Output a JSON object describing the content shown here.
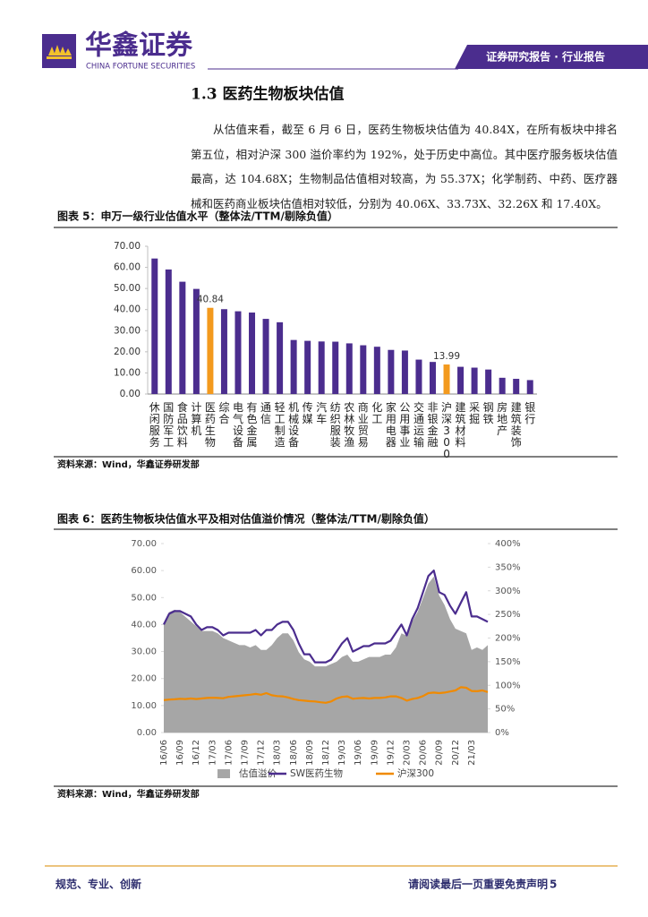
{
  "header": {
    "company": "华鑫证券",
    "company_en": "CHINA FORTUNE SECURITIES",
    "report_type": "证券研究报告 · 行业报告"
  },
  "section": {
    "heading": "1.3 医药生物板块估值",
    "paragraph": "从估值来看，截至 6 月 6 日，医药生物板块估值为 40.84X，在所有板块中排名第五位，相对沪深 300 溢价率约为 192%，处于历史中高位。其中医疗服务板块估值最高，达 104.68X；生物制品估值相对较高，为 55.37X；化学制药、中药、医疗器械和医药商业板块估值相对较低，分别为 40.06X、33.73X、32.26X 和 17.40X。"
  },
  "chart_data": [
    {
      "type": "bar",
      "title": "图表 5：申万一级行业估值水平（整体法/TTM/剔除负值）",
      "categories": [
        "休闲服务",
        "国防军工",
        "食品饮料",
        "计算机",
        "医药生物",
        "综合",
        "电气设备",
        "有色金属",
        "通信",
        "轻工制造",
        "机械设备",
        "传媒",
        "汽车",
        "纺织服装",
        "农林牧渔",
        "商业贸易",
        "化工",
        "家用电器",
        "公用事业",
        "交通运输",
        "非银金融",
        "沪深300",
        "建筑材料",
        "采掘",
        "钢铁",
        "房地产",
        "建筑装饰",
        "银行"
      ],
      "values": [
        64.2,
        59.0,
        53.2,
        49.8,
        40.84,
        40.2,
        39.2,
        38.6,
        35.6,
        34.0,
        25.6,
        25.2,
        24.9,
        24.8,
        24.0,
        23.1,
        22.4,
        20.9,
        20.6,
        16.3,
        15.2,
        13.99,
        12.9,
        12.5,
        11.6,
        7.7,
        7.2,
        6.6
      ],
      "value_labels": [
        null,
        null,
        null,
        null,
        "40.84",
        null,
        null,
        null,
        null,
        null,
        null,
        null,
        null,
        null,
        null,
        null,
        null,
        null,
        null,
        null,
        null,
        "13.99",
        null,
        null,
        null,
        null,
        null,
        null
      ],
      "colors": [
        "#4b2d8e",
        "#4b2d8e",
        "#4b2d8e",
        "#4b2d8e",
        "#f39a1e",
        "#4b2d8e",
        "#4b2d8e",
        "#4b2d8e",
        "#4b2d8e",
        "#4b2d8e",
        "#4b2d8e",
        "#4b2d8e",
        "#4b2d8e",
        "#4b2d8e",
        "#4b2d8e",
        "#4b2d8e",
        "#4b2d8e",
        "#4b2d8e",
        "#4b2d8e",
        "#4b2d8e",
        "#4b2d8e",
        "#f39a1e",
        "#4b2d8e",
        "#4b2d8e",
        "#4b2d8e",
        "#4b2d8e",
        "#4b2d8e",
        "#4b2d8e"
      ],
      "ylim": [
        0,
        70
      ],
      "yticks": [
        {
          "value": 0,
          "label": "0.00"
        },
        {
          "value": 10,
          "label": "10.00"
        },
        {
          "value": 20,
          "label": "20.00"
        },
        {
          "value": 30,
          "label": "30.00"
        },
        {
          "value": 40,
          "label": "40.00"
        },
        {
          "value": 50,
          "label": "50.00"
        },
        {
          "value": 60,
          "label": "60.00"
        },
        {
          "value": 70,
          "label": "70.00"
        }
      ],
      "source": "资料来源：Wind，华鑫证券研发部"
    },
    {
      "type": "line",
      "title": "图表 6：医药生物板块估值水平及相对估值溢价情况（整体法/TTM/剔除负值）",
      "categories": [
        "16/06",
        null,
        null,
        "16/09",
        null,
        null,
        "16/12",
        null,
        null,
        "17/03",
        null,
        null,
        "17/06",
        null,
        null,
        "17/09",
        null,
        null,
        "17/12",
        null,
        null,
        "18/03",
        null,
        null,
        "18/06",
        null,
        null,
        "18/09",
        null,
        null,
        "18/12",
        null,
        null,
        "19/03",
        null,
        null,
        "19/06",
        null,
        null,
        "19/09",
        null,
        null,
        "19/12",
        null,
        null,
        "20/03",
        null,
        null,
        "20/06",
        null,
        null,
        "20/09",
        null,
        null,
        "20/12",
        null,
        null,
        "21/03",
        null,
        null,
        null
      ],
      "series": [
        {
          "name": "估值溢价",
          "type": "area",
          "color": "#a6a6a6",
          "axis": "y2",
          "values": [
            230,
            255,
            260,
            255,
            245,
            235,
            225,
            215,
            215,
            215,
            210,
            200,
            195,
            190,
            185,
            185,
            180,
            185,
            175,
            175,
            185,
            200,
            210,
            210,
            195,
            170,
            155,
            150,
            140,
            140,
            140,
            145,
            150,
            160,
            165,
            150,
            150,
            155,
            160,
            160,
            160,
            165,
            165,
            180,
            210,
            205,
            235,
            255,
            285,
            315,
            330,
            290,
            270,
            240,
            220,
            215,
            210,
            175,
            180,
            175,
            185
          ]
        },
        {
          "name": "SW医药生物",
          "type": "line",
          "color": "#4b2d8e",
          "values": [
            40,
            44,
            45,
            45,
            44,
            43,
            40,
            38,
            39,
            39,
            38,
            36,
            37,
            37,
            37,
            37,
            37,
            38,
            36,
            38,
            38,
            40,
            41,
            41,
            38,
            33,
            29,
            29,
            26,
            26,
            26,
            27,
            30,
            33,
            35,
            30,
            31,
            32,
            32,
            33,
            33,
            33,
            34,
            37,
            40,
            36,
            42,
            46,
            52,
            58,
            60,
            52,
            51,
            47,
            44,
            48,
            52,
            43,
            43,
            42,
            41
          ]
        },
        {
          "name": "沪深300",
          "type": "line",
          "color": "#f08a00",
          "values": [
            12.0,
            12.2,
            12.3,
            12.5,
            12.4,
            12.6,
            12.4,
            12.6,
            12.8,
            12.9,
            12.8,
            12.7,
            13.2,
            13.4,
            13.6,
            13.8,
            14.0,
            14.3,
            14.0,
            14.6,
            13.8,
            13.5,
            13.4,
            13.0,
            12.4,
            12.0,
            11.8,
            11.6,
            11.5,
            11.2,
            11.0,
            11.5,
            12.6,
            13.2,
            13.4,
            12.5,
            12.7,
            12.8,
            12.6,
            12.8,
            12.8,
            13.0,
            13.4,
            13.4,
            12.8,
            11.8,
            12.4,
            12.8,
            13.5,
            14.6,
            14.8,
            14.6,
            14.8,
            15.2,
            15.6,
            16.8,
            16.6,
            15.4,
            15.3,
            15.6,
            15.0
          ]
        }
      ],
      "ylim": [
        0,
        70
      ],
      "yticks": [
        {
          "value": 0,
          "label": "0.00"
        },
        {
          "value": 10,
          "label": "10.00"
        },
        {
          "value": 20,
          "label": "20.00"
        },
        {
          "value": 30,
          "label": "30.00"
        },
        {
          "value": 40,
          "label": "40.00"
        },
        {
          "value": 50,
          "label": "50.00"
        },
        {
          "value": 60,
          "label": "60.00"
        },
        {
          "value": 70,
          "label": "70.00"
        }
      ],
      "y2lim": [
        0,
        400
      ],
      "y2ticks": [
        {
          "value": 0,
          "label": "0%"
        },
        {
          "value": 50,
          "label": "50%"
        },
        {
          "value": 100,
          "label": "100%"
        },
        {
          "value": 150,
          "label": "150%"
        },
        {
          "value": 200,
          "label": "200%"
        },
        {
          "value": 250,
          "label": "250%"
        },
        {
          "value": 300,
          "label": "300%"
        },
        {
          "value": 350,
          "label": "350%"
        },
        {
          "value": 400,
          "label": "400%"
        }
      ],
      "source": "资料来源：Wind，华鑫证券研发部"
    }
  ],
  "footer": {
    "slogan": "规范、专业、创新",
    "disclaimer": "请阅读最后一页重要免责声明",
    "page": "5"
  }
}
